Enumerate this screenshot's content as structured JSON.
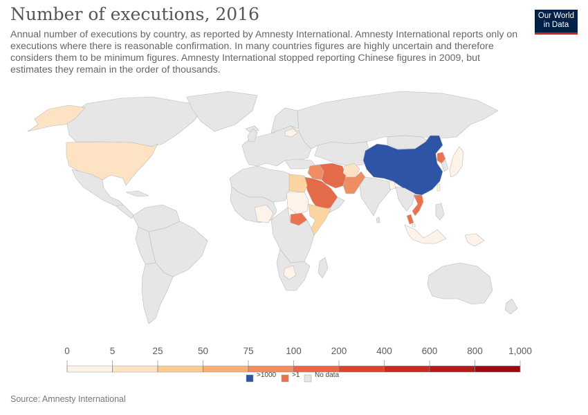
{
  "header": {
    "title": "Number of executions, 2016",
    "subtitle": "Annual number of executions by country, as reported by Amnesty International. Amnesty International reports only on executions where there is reasonable confirmation. In many countries figures are highly uncertain and therefore considers them to be minimum figures. Amnesty International stopped reporting Chinese figures in 2009, but estimates they remain in the order of thousands."
  },
  "logo": {
    "line1": "Our World",
    "line2": "in Data"
  },
  "legend": {
    "ticks": [
      "0",
      "5",
      "25",
      "50",
      "75",
      "100",
      "200",
      "400",
      "600",
      "800",
      "1,000"
    ],
    "colors": [
      "#fef3e8",
      "#fde3c4",
      "#fcca93",
      "#fbaf73",
      "#f58b5b",
      "#ec6547",
      "#dc4232",
      "#c82a23",
      "#b21a1b",
      "#9e0a12"
    ],
    "special": [
      {
        "label": ">1000",
        "color": "#2e55a5"
      },
      {
        "label": ">1",
        "color": "#e8744f"
      },
      {
        "label": "No data",
        "color": "#e6e6e6"
      }
    ]
  },
  "map": {
    "no_data_color": "#e6e6e6",
    "border_color": "#bbbbbb",
    "countries": [
      {
        "name": "China",
        "category": ">1000",
        "color": "#2e55a5"
      },
      {
        "name": "Iran",
        "color": "#e36b4a"
      },
      {
        "name": "Saudi Arabia",
        "color": "#e36b4a"
      },
      {
        "name": "Iraq",
        "color": "#f08e63"
      },
      {
        "name": "Pakistan",
        "color": "#f08e63"
      },
      {
        "name": "Egypt",
        "color": "#fcd4a0"
      },
      {
        "name": "United States",
        "color": "#fde3c4"
      },
      {
        "name": "Somalia",
        "color": "#fcd4a0"
      },
      {
        "name": "Afghanistan",
        "color": "#fde3c4"
      },
      {
        "name": "Bangladesh",
        "color": "#fef3e8"
      },
      {
        "name": "Sudan",
        "color": "#fef3e8"
      },
      {
        "name": "Nigeria",
        "color": "#fef3e8"
      },
      {
        "name": "Botswana",
        "color": "#fef3e8"
      },
      {
        "name": "Belarus",
        "color": "#fef3e8"
      },
      {
        "name": "Japan",
        "color": "#fef3e8"
      },
      {
        "name": "Singapore",
        "color": "#fef3e8"
      },
      {
        "name": "Indonesia",
        "color": "#fef3e8"
      },
      {
        "name": "Taiwan",
        "color": "#fef3e8"
      },
      {
        "name": "Vietnam",
        "category": ">1",
        "color": "#e8744f"
      },
      {
        "name": "North Korea",
        "category": ">1",
        "color": "#e8744f"
      },
      {
        "name": "South Sudan",
        "category": ">1",
        "color": "#e8744f"
      },
      {
        "name": "Malaysia",
        "category": ">1",
        "color": "#e8744f"
      }
    ]
  },
  "footer": {
    "source": "Source: Amnesty International"
  }
}
